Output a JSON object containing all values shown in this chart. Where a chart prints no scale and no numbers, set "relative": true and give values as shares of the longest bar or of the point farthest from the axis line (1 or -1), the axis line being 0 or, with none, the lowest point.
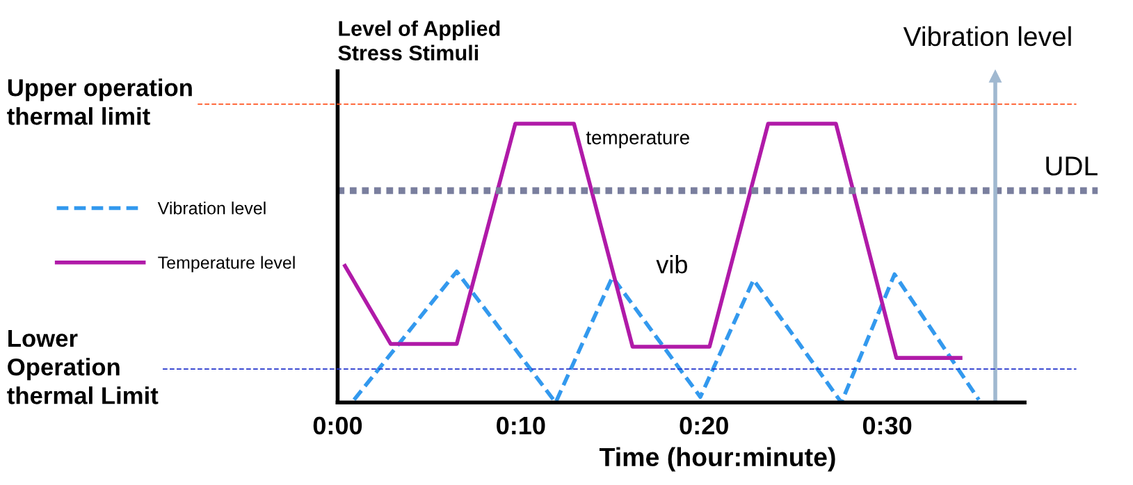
{
  "chart_data": {
    "type": "line",
    "relative": true,
    "ylabel": "Level of Applied\nStress Stimuli",
    "xlabel": "Time (hour:minute)",
    "xlim": [
      0,
      41.5
    ],
    "xticks": [
      {
        "value": 0,
        "label": "0:00"
      },
      {
        "value": 10,
        "label": "0:10"
      },
      {
        "value": 20,
        "label": "0:20"
      },
      {
        "value": 30,
        "label": "0:30"
      }
    ],
    "tick_labels": "x",
    "grid": false,
    "marker": "none",
    "legend": "left",
    "series": [
      {
        "name": "Vibration level",
        "color": "#3399ee",
        "line_style": "dashed",
        "x": [
          0.9,
          6.5,
          11.9,
          15.0,
          19.8,
          22.7,
          27.5,
          30.4,
          35.0
        ],
        "values": [
          0.01,
          0.47,
          0,
          0.45,
          0.02,
          0.44,
          0,
          0.46,
          0.01
        ]
      },
      {
        "name": "Temperature level",
        "color": "#b01aa8",
        "line_style": "solid",
        "x": [
          0.4,
          2.9,
          6.5,
          9.7,
          12.9,
          16.1,
          20.3,
          23.5,
          27.2,
          30.5,
          34.0
        ],
        "values": [
          0.49,
          0.21,
          0.21,
          1.0,
          1.0,
          0.2,
          0.2,
          1.0,
          1.0,
          0.16,
          0.16
        ]
      }
    ],
    "ref_lines": [
      {
        "axis": "y",
        "value": 1.07,
        "label": "Upper operation\nthermal limit",
        "color": "#ff5522",
        "line_style": "dashed"
      },
      {
        "axis": "y",
        "value": 0.12,
        "label": "Lower\nOperation\nthermal Limit",
        "color": "#2233cc",
        "line_style": "dashed"
      },
      {
        "axis": "y",
        "value": 0.76,
        "label": "UDL",
        "color": "#7a7f9e",
        "line_style": "dotted"
      },
      {
        "axis": "x",
        "value": 35.9,
        "label": "Vibration level",
        "color": "#a0b8d0",
        "line_style": "solid"
      }
    ],
    "annotations": [
      "temperature",
      "vib"
    ]
  }
}
